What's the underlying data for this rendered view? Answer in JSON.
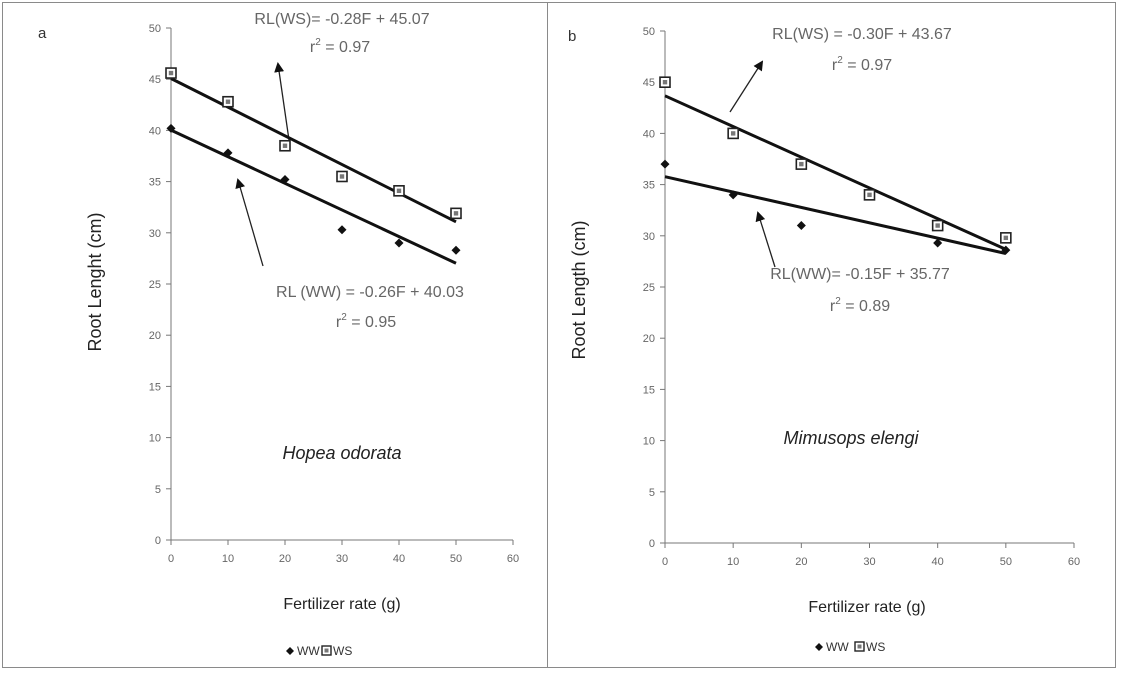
{
  "chart_data": [
    {
      "type": "scatter",
      "panel_label": "a",
      "species": "Hopea odorata",
      "xlabel": "Fertilizer rate (g)",
      "ylabel": "Root Lenght (cm)",
      "xlim": [
        0,
        60
      ],
      "ylim": [
        0,
        50
      ],
      "xticks": [
        "0",
        "10",
        "20",
        "30",
        "40",
        "50",
        "60"
      ],
      "yticks": [
        "0",
        "5",
        "10",
        "15",
        "20",
        "25",
        "30",
        "35",
        "40",
        "45",
        "50"
      ],
      "legend_position": "bottom",
      "series": [
        {
          "name": "WW",
          "marker": "diamond",
          "x": [
            0,
            10,
            20,
            30,
            40,
            50
          ],
          "y": [
            40.2,
            37.8,
            35.2,
            30.3,
            29.0,
            28.3
          ],
          "trendline": {
            "slope": -0.26,
            "intercept": 40.03
          },
          "equation": "RL (WW) = -0.26F + 40.03",
          "r2": "r",
          "r2_sup": "2",
          "r2_value": " = 0.95"
        },
        {
          "name": "WS",
          "marker": "square",
          "x": [
            0,
            10,
            20,
            30,
            40,
            50
          ],
          "y": [
            45.6,
            42.8,
            38.5,
            35.5,
            34.1,
            31.9
          ],
          "trendline": {
            "slope": -0.28,
            "intercept": 45.07
          },
          "equation": "RL(WS)= -0.28F + 45.07",
          "r2": "r",
          "r2_sup": "2",
          "r2_value": " = 0.97"
        }
      ]
    },
    {
      "type": "scatter",
      "panel_label": "b",
      "species": "Mimusops elengi",
      "xlabel": "Fertilizer rate (g)",
      "ylabel": "Root Length (cm)",
      "xlim": [
        0,
        60
      ],
      "ylim": [
        0,
        50
      ],
      "xticks": [
        "0",
        "10",
        "20",
        "30",
        "40",
        "50",
        "60"
      ],
      "yticks": [
        "0",
        "5",
        "10",
        "15",
        "20",
        "25",
        "30",
        "35",
        "40",
        "45",
        "50"
      ],
      "legend_position": "bottom",
      "series": [
        {
          "name": "WW",
          "marker": "diamond",
          "x": [
            0,
            10,
            20,
            40,
            50
          ],
          "y": [
            37.0,
            34.0,
            31.0,
            29.3,
            28.6
          ],
          "trendline": {
            "slope": -0.15,
            "intercept": 35.77
          },
          "equation": "RL(WW)= -0.15F + 35.77",
          "r2": "r",
          "r2_sup": "2",
          "r2_value": " = 0.89"
        },
        {
          "name": "WS",
          "marker": "square",
          "x": [
            0,
            10,
            20,
            30,
            40,
            50
          ],
          "y": [
            45.0,
            40.0,
            37.0,
            34.0,
            31.0,
            29.8
          ],
          "trendline": {
            "slope": -0.3,
            "intercept": 43.67
          },
          "equation": "RL(WS) = -0.30F + 43.67",
          "r2": "r",
          "r2_sup": "2",
          "r2_value": " = 0.97"
        }
      ]
    }
  ]
}
